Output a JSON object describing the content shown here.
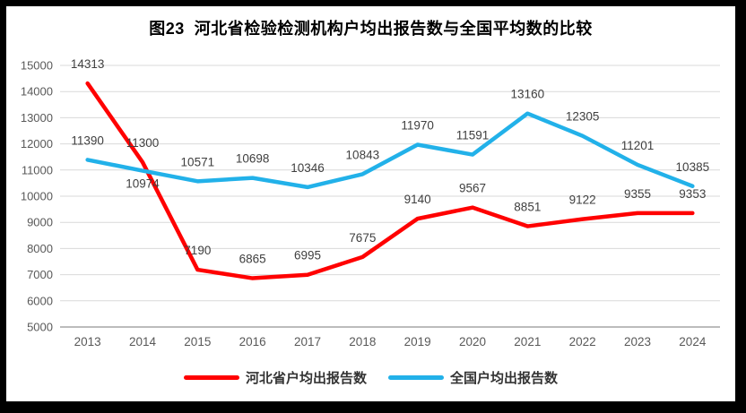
{
  "frame": {
    "border_color": "#000000",
    "background": "#FFFFFF"
  },
  "chart_data": {
    "type": "line",
    "title": "图23  河北省检验检测机构户均出报告数与全国平均数的比较",
    "categories": [
      "2013",
      "2014",
      "2015",
      "2016",
      "2017",
      "2018",
      "2019",
      "2020",
      "2021",
      "2022",
      "2023",
      "2024"
    ],
    "yticks": [
      5000,
      6000,
      7000,
      8000,
      9000,
      10000,
      11000,
      12000,
      13000,
      14000,
      15000
    ],
    "ylim": [
      5000,
      15000
    ],
    "grid": true,
    "legend_position": "bottom",
    "data_labels": true,
    "series": [
      {
        "id": "hebei",
        "name": "河北省户均出报告数",
        "color": "#FF0000",
        "values": [
          14313,
          11300,
          7190,
          6865,
          6995,
          7675,
          9140,
          9567,
          8851,
          9122,
          9355,
          9353
        ]
      },
      {
        "id": "national",
        "name": "全国户均出报告数",
        "color": "#22B1E9",
        "values": [
          11390,
          10974,
          10571,
          10698,
          10346,
          10843,
          11970,
          11591,
          13160,
          12305,
          11201,
          10385
        ],
        "label_below_indices": [
          1
        ]
      }
    ],
    "colors": {
      "gridline": "#D9D9D9",
      "axis_line": "#A6A6A6",
      "tick_label": "#595959",
      "data_label": "#3F3F3F",
      "title": "#000000"
    }
  }
}
